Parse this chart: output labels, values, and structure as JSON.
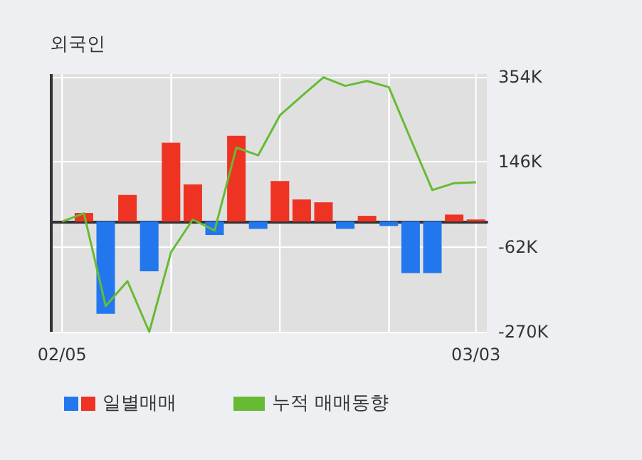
{
  "chart_data": {
    "type": "bar",
    "title": "외국인",
    "categories": [
      "02/05",
      null,
      null,
      null,
      null,
      null,
      null,
      null,
      null,
      null,
      null,
      null,
      null,
      null,
      null,
      null,
      null,
      null,
      null,
      "03/03"
    ],
    "series": [
      {
        "name": "일별매매",
        "colors": [
          null,
          "#ee3322",
          "#2277ee",
          "#ee3322",
          "#2277ee",
          "#ee3322",
          "#ee3322",
          "#2277ee",
          "#ee3322",
          "#2277ee",
          "#ee3322",
          "#ee3322",
          "#ee3322",
          "#2277ee",
          "#ee3322",
          "#2277ee",
          "#2277ee",
          "#2277ee",
          "#ee3322",
          "#ee3322"
        ],
        "values": [
          null,
          21,
          -226,
          65,
          -122,
          193,
          91,
          -33,
          210,
          -18,
          99,
          54,
          47,
          -18,
          14,
          -11,
          -126,
          -126,
          17,
          5
        ]
      },
      {
        "name": "누적 매매동향",
        "type": "line",
        "color": "#66bb33",
        "values": [
          0,
          20,
          -207,
          -146,
          -270,
          -75,
          5,
          -22,
          181,
          162,
          260,
          307,
          353,
          332,
          344,
          329,
          202,
          77,
          94,
          96
        ]
      }
    ],
    "ylim": [
      -270,
      361
    ],
    "yticks": [
      {
        "value": 354,
        "label": "354K"
      },
      {
        "value": 146,
        "label": "146K"
      },
      {
        "value": -62,
        "label": "-62K"
      },
      {
        "value": -270,
        "label": "-270K"
      }
    ],
    "grid": true,
    "legend": "bottom left"
  }
}
